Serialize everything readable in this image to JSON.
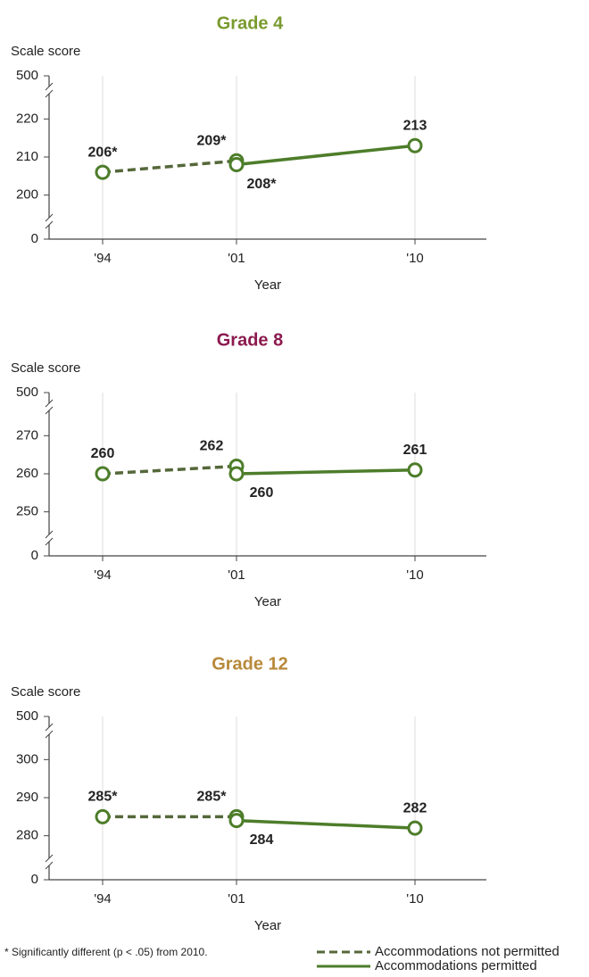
{
  "chart_data": [
    {
      "type": "line",
      "title": "Grade 4",
      "title_color": "#7a9a2e",
      "y_label": "Scale score",
      "x_label": "Year",
      "categories": [
        "'94",
        "'01",
        "'10"
      ],
      "series": [
        {
          "name": "Accommodations not permitted",
          "color": "#55683a",
          "dashed": true,
          "values": [
            206,
            209,
            null
          ],
          "value_labels": [
            "206*",
            "209*",
            null
          ]
        },
        {
          "name": "Accommodations permitted",
          "color": "#4d7d2a",
          "dashed": false,
          "values": [
            null,
            208,
            213
          ],
          "value_labels": [
            null,
            "208*",
            "213"
          ]
        }
      ],
      "ylim": [
        195,
        225
      ],
      "yticks": [
        0,
        200,
        210,
        220,
        500
      ],
      "axis_break": true,
      "grid": true
    },
    {
      "type": "line",
      "title": "Grade 8",
      "title_color": "#8b1a4e",
      "y_label": "Scale score",
      "x_label": "Year",
      "categories": [
        "'94",
        "'01",
        "'10"
      ],
      "series": [
        {
          "color": "#55683a",
          "dashed": true,
          "values": [
            260,
            262,
            null
          ]
        },
        {
          "color": "#4d7d2a",
          "dashed": false,
          "values": [
            null,
            260,
            261
          ]
        }
      ],
      "ylim": [
        245,
        275
      ],
      "yticks": [
        0,
        250,
        260,
        270,
        500
      ],
      "axis_break": true,
      "grid": true
    },
    {
      "type": "line",
      "title": "Grade 12",
      "title_color": "#b8893a",
      "y_label": "Scale score",
      "x_label": "Year",
      "categories": [
        "'94",
        "'01",
        "'10"
      ],
      "series": [
        {
          "color": "#55683a",
          "dashed": true,
          "values": [
            285,
            285,
            null
          ],
          "value_labels": [
            "285*",
            "285*",
            null
          ]
        },
        {
          "color": "#4d7d2a",
          "dashed": false,
          "values": [
            null,
            284,
            282
          ]
        }
      ],
      "ylim": [
        275,
        305
      ],
      "yticks": [
        0,
        280,
        290,
        300,
        500
      ],
      "axis_break": true,
      "grid": true
    }
  ],
  "footnote": "* Significantly different (p < .05) from 2010."
}
